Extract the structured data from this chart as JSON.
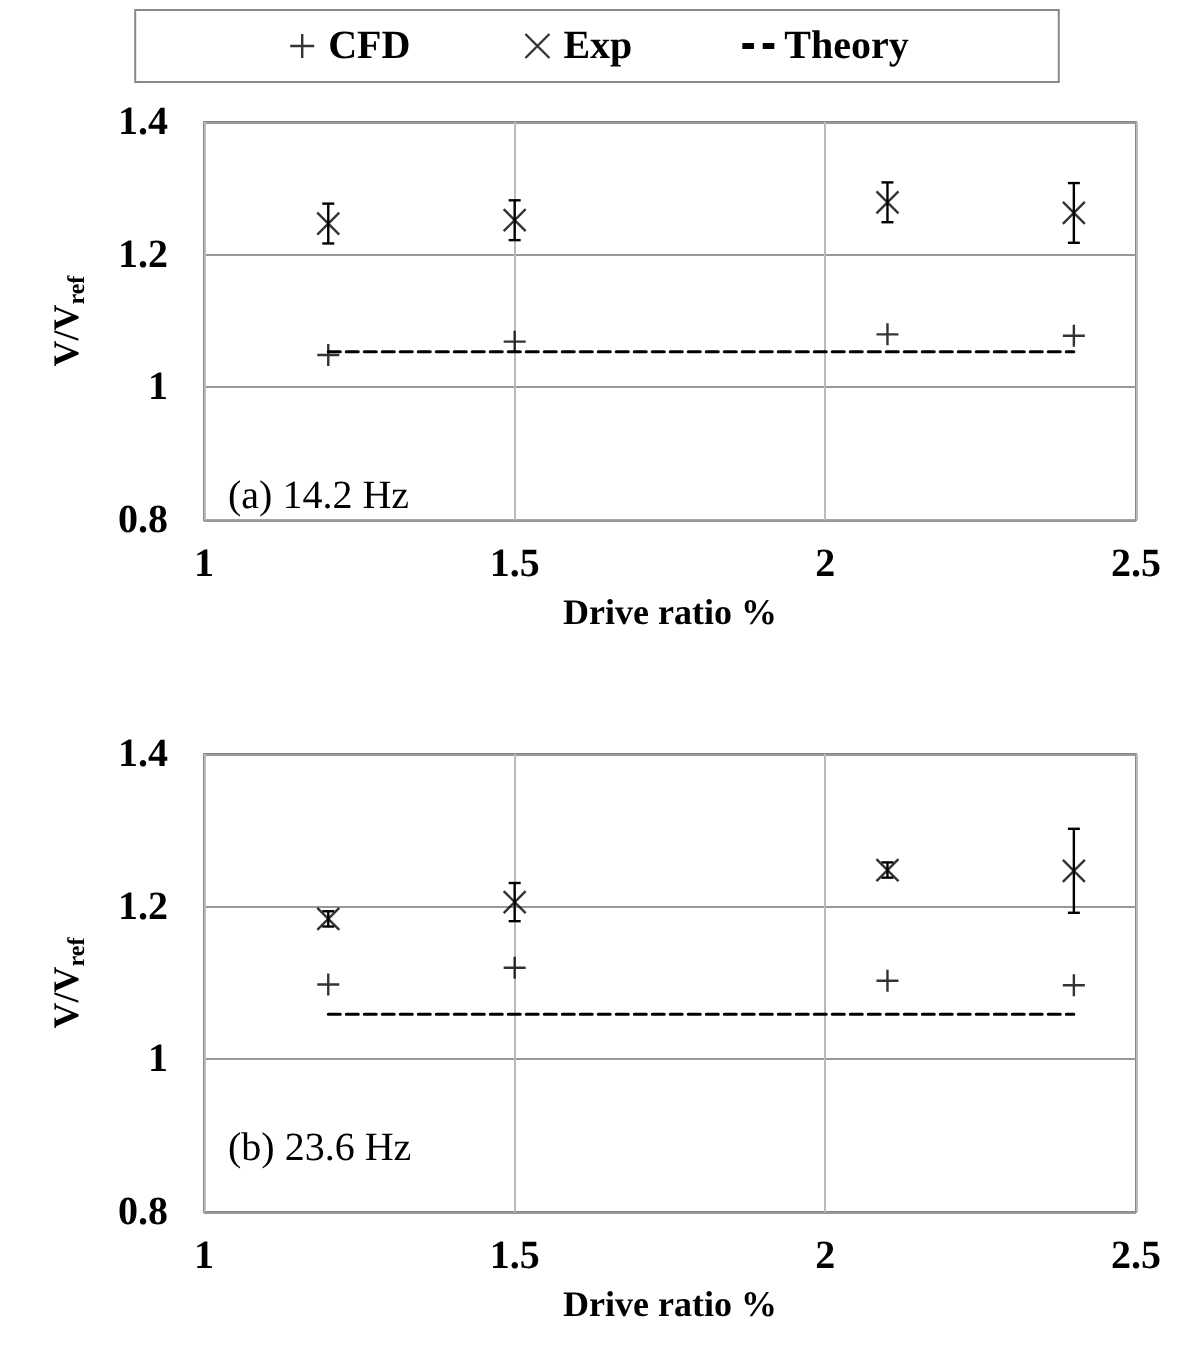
{
  "chart_data": [
    {
      "type": "scatter",
      "xlabel": "Drive ratio %",
      "ylabel": "V/V$_{ref}$",
      "annotations": [
        "(a) 14.2 Hz"
      ],
      "x": [
        1.2,
        1.5,
        2.1,
        2.4
      ],
      "xlim": [
        1,
        2.5
      ],
      "xticks": [
        1,
        1.5,
        2,
        2.5
      ],
      "ylim": [
        0.8,
        1.4
      ],
      "yticks": [
        0.8,
        1,
        1.2,
        1.4
      ],
      "grid": true,
      "legend": "top",
      "series": [
        {
          "name": "CFD",
          "marker": "plus",
          "color": "#000000",
          "values": [
            1.049,
            1.069,
            1.08,
            1.078
          ]
        },
        {
          "name": "Exp",
          "marker": "cross",
          "color": "#000000",
          "values": [
            1.247,
            1.252,
            1.279,
            1.263
          ],
          "errors": [
            0.03,
            0.03,
            0.03,
            0.045
          ]
        },
        {
          "name": "Theory",
          "type": "line",
          "marker": "none",
          "line_style": "dashed",
          "color": "#000000",
          "values": [
            1.054,
            1.054,
            1.054,
            1.054
          ]
        }
      ]
    },
    {
      "type": "scatter",
      "xlabel": "Drive ratio %",
      "ylabel": "V/V$_{ref}$",
      "annotations": [
        "(b) 23.6 Hz"
      ],
      "x": [
        1.2,
        1.5,
        2.1,
        2.4
      ],
      "xlim": [
        1,
        2.5
      ],
      "xticks": [
        1,
        1.5,
        2,
        2.5
      ],
      "ylim": [
        0.8,
        1.4
      ],
      "yticks": [
        0.8,
        1,
        1.2,
        1.4
      ],
      "grid": true,
      "series": [
        {
          "marker": "plus",
          "color": "#000000",
          "values": [
            1.098,
            1.12,
            1.103,
            1.097
          ]
        },
        {
          "marker": "cross",
          "color": "#000000",
          "values": [
            1.184,
            1.206,
            1.248,
            1.247
          ],
          "errors": [
            0.01,
            0.025,
            0.01,
            0.055
          ]
        },
        {
          "type": "line",
          "marker": "none",
          "line_style": "dashed",
          "color": "#000000",
          "values": [
            1.059,
            1.059,
            1.059,
            1.059
          ]
        }
      ]
    }
  ]
}
